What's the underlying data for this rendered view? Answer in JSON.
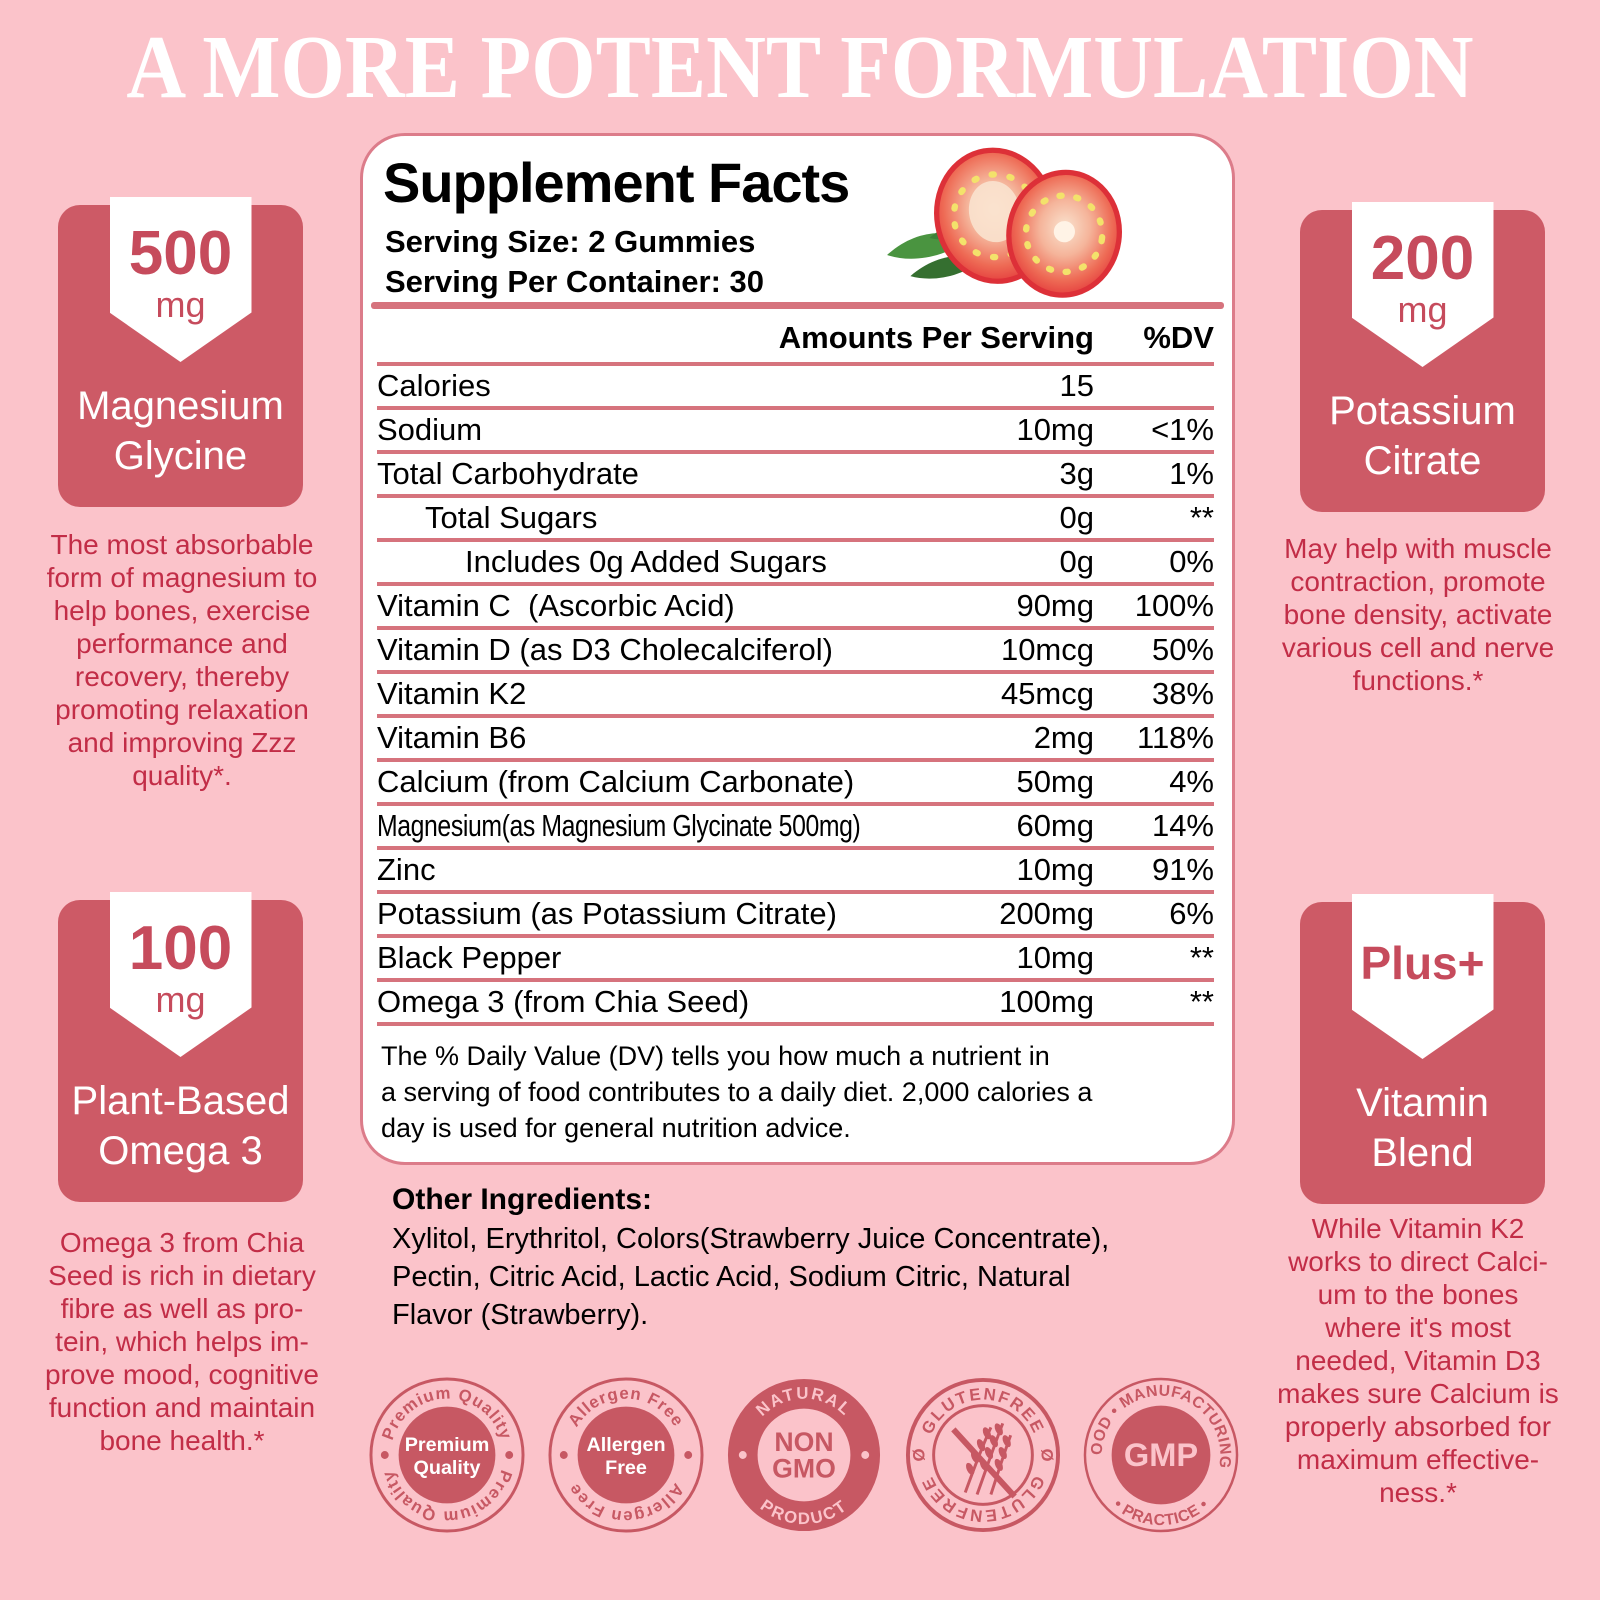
{
  "title": "A MORE POTENT FORMULATION",
  "colors": {
    "background": "#FBC3CA",
    "card": "#CD5A66",
    "badge": "#C75863",
    "deep_text": "#C22D47",
    "table_line": "#D6737D",
    "panel_border": "#DC7C8A",
    "title_text": "#FFFFFF",
    "pennant_text": "#C64B5C"
  },
  "panel": {
    "heading": "Supplement Facts",
    "serving_size": "Serving Size: 2 Gummies",
    "serving_per_container": "Serving Per Container: 30",
    "image": "strawberry-slices",
    "col_amount": "Amounts Per Serving",
    "col_dv": "%DV",
    "rows": [
      {
        "label": "Calories",
        "amount": "15",
        "dv": "",
        "indent": 0
      },
      {
        "label": "Sodium",
        "amount": "10mg",
        "dv": "<1%",
        "indent": 0
      },
      {
        "label": "Total Carbohydrate",
        "amount": "3g",
        "dv": "1%",
        "indent": 0
      },
      {
        "label": "Total Sugars",
        "amount": "0g",
        "dv": "**",
        "indent": 1
      },
      {
        "label": "Includes 0g Added Sugars",
        "amount": "0g",
        "dv": "0%",
        "indent": 2
      },
      {
        "label": "Vitamin C  (Ascorbic Acid)",
        "amount": "90mg",
        "dv": "100%",
        "indent": 0
      },
      {
        "label": "Vitamin D (as D3 Cholecalciferol)",
        "amount": "10mcg",
        "dv": "50%",
        "indent": 0
      },
      {
        "label": "Vitamin K2",
        "amount": "45mcg",
        "dv": "38%",
        "indent": 0
      },
      {
        "label": "Vitamin B6",
        "amount": "2mg",
        "dv": "118%",
        "indent": 0
      },
      {
        "label": "Calcium (from Calcium Carbonate)",
        "amount": "50mg",
        "dv": "4%",
        "indent": 0
      },
      {
        "label": "Magnesium(as Magnesium Glycinate 500mg)",
        "amount": "60mg",
        "dv": "14%",
        "indent": 0,
        "condensed": true
      },
      {
        "label": "Zinc",
        "amount": "10mg",
        "dv": "91%",
        "indent": 0
      },
      {
        "label": "Potassium (as Potassium Citrate)",
        "amount": "200mg",
        "dv": "6%",
        "indent": 0
      },
      {
        "label": "Black Pepper",
        "amount": "10mg",
        "dv": "**",
        "indent": 0
      },
      {
        "label": "Omega 3 (from Chia Seed)",
        "amount": "100mg",
        "dv": "**",
        "indent": 0
      }
    ],
    "footnote_lines": [
      "The % Daily Value (DV) tells you how much a nutrient in",
      "a serving of food contributes to a daily diet. 2,000 calories a",
      "day is used for general nutrition advice."
    ]
  },
  "other_ingredients": {
    "heading": "Other Ingredients:",
    "lines": [
      "Xylitol, Erythritol, Colors(Strawberry Juice Concentrate),",
      "Pectin, Citric Acid, Lactic Acid, Sodium Citric, Natural",
      "Flavor (Strawberry)."
    ]
  },
  "cards": {
    "left_top": {
      "value": "500",
      "unit": "mg",
      "name_lines": [
        "Magnesium",
        "Glycine"
      ],
      "desc_lines": [
        "The most absorbable",
        "form of magnesium to",
        "help bones, exercise",
        "performance and",
        "recovery, thereby",
        "promoting relaxation",
        "and improving Zzz",
        "quality*."
      ]
    },
    "left_bottom": {
      "value": "100",
      "unit": "mg",
      "name_lines": [
        "Plant-Based",
        "Omega 3"
      ],
      "desc_lines": [
        "Omega 3 from Chia",
        "Seed is rich in dietary",
        "fibre as well as pro-",
        "tein, which helps im-",
        "prove mood, cognitive",
        "function and maintain",
        "bone health.*"
      ]
    },
    "right_top": {
      "value": "200",
      "unit": "mg",
      "name_lines": [
        "Potassium",
        "Citrate"
      ],
      "desc_lines": [
        "May help with muscle",
        "contraction, promote",
        "bone density, activate",
        "various cell and nerve",
        "functions.*"
      ]
    },
    "right_bottom": {
      "value": "Plus+",
      "unit": "",
      "name_lines": [
        "Vitamin",
        "Blend"
      ],
      "desc_lines": [
        "While Vitamin K2",
        "works to direct Calci-",
        "um to the bones",
        "where it's most",
        "needed, Vitamin D3",
        "makes sure Calcium is",
        "properly absorbed for",
        "maximum effective-",
        "ness.*"
      ]
    }
  },
  "badges": [
    {
      "id": "premium-quality",
      "type": "outline",
      "arc_top": "Premium Quality",
      "arc_bottom": "Premium Quality",
      "center_lines": [
        "Premium",
        "Quality"
      ]
    },
    {
      "id": "allergen-free",
      "type": "outline",
      "arc_top": "Allergen Free",
      "arc_bottom": "Allergen Free",
      "center_lines": [
        "Allergen",
        "Free"
      ]
    },
    {
      "id": "non-gmo",
      "type": "ring",
      "arc_top": "NATURAL",
      "arc_bottom": "PRODUCT",
      "center_lines": [
        "NON",
        "GMO"
      ]
    },
    {
      "id": "gluten-free",
      "type": "stamp",
      "arc_top": "GLUTENFREE",
      "arc_bottom": "GLUTENFREE",
      "side_symbol": "Ø",
      "center_icon": "wheat-crossed-icon"
    },
    {
      "id": "gmp",
      "type": "gmp",
      "arc_top": "GOOD • MANUFACTURING",
      "arc_bottom": "• PRACTICE •",
      "center_lines": [
        "GMP"
      ]
    }
  ]
}
